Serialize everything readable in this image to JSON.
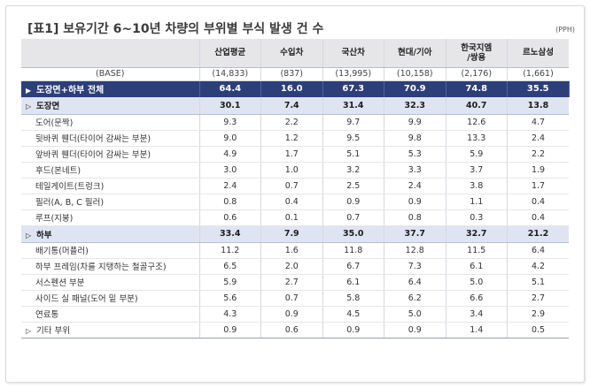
{
  "title": "[표1] 보유기간 6~10년 차량의 부위별 부식 발생 건 수",
  "unit": "(PPH)",
  "columns": [
    "산업평균",
    "수입차",
    "국산차",
    "현대/기아",
    "한국지엠\n/쌍용",
    "르노삼성"
  ],
  "base": {
    "label": "(BASE)",
    "values": [
      "(14,833)",
      "(837)",
      "(13,995)",
      "(10,158)",
      "(2,176)",
      "(1,661)"
    ]
  },
  "total": {
    "label": "도장면+하부 전체",
    "values": [
      "64.4",
      "16.0",
      "67.3",
      "70.9",
      "74.8",
      "35.5"
    ]
  },
  "group_paint": {
    "label": "도장면",
    "values": [
      "30.1",
      "7.4",
      "31.4",
      "32.3",
      "40.7",
      "13.8"
    ]
  },
  "paint_items": [
    {
      "label": "도어(문짝)",
      "values": [
        "9.3",
        "2.2",
        "9.7",
        "9.9",
        "12.6",
        "4.7"
      ]
    },
    {
      "label": "뒷바퀴 휀더(타이어 감싸는 부분)",
      "values": [
        "9.0",
        "1.2",
        "9.5",
        "9.8",
        "13.3",
        "2.4"
      ]
    },
    {
      "label": "앞바퀴 휀더(타이어 감싸는 부분)",
      "values": [
        "4.9",
        "1.7",
        "5.1",
        "5.3",
        "5.9",
        "2.2"
      ]
    },
    {
      "label": "후드(본네트)",
      "values": [
        "3.0",
        "1.0",
        "3.2",
        "3.3",
        "3.7",
        "1.9"
      ]
    },
    {
      "label": "테일게이트(트렁크)",
      "values": [
        "2.4",
        "0.7",
        "2.5",
        "2.4",
        "3.8",
        "1.7"
      ]
    },
    {
      "label": "필러(A, B, C 필러)",
      "values": [
        "0.8",
        "0.4",
        "0.9",
        "0.9",
        "1.1",
        "0.4"
      ]
    },
    {
      "label": "루프(지붕)",
      "values": [
        "0.6",
        "0.1",
        "0.7",
        "0.8",
        "0.3",
        "0.4"
      ]
    }
  ],
  "group_under": {
    "label": "하부",
    "values": [
      "33.4",
      "7.9",
      "35.0",
      "37.7",
      "32.7",
      "21.2"
    ]
  },
  "under_items": [
    {
      "label": "배기통(머플러)",
      "values": [
        "11.2",
        "1.6",
        "11.8",
        "12.8",
        "11.5",
        "6.4"
      ]
    },
    {
      "label": "하부 프레임(차를 지탱하는 철골구조)",
      "values": [
        "6.5",
        "2.0",
        "6.7",
        "7.3",
        "6.1",
        "4.2"
      ]
    },
    {
      "label": "서스펜션 부분",
      "values": [
        "5.9",
        "2.7",
        "6.1",
        "6.4",
        "5.0",
        "5.1"
      ]
    },
    {
      "label": "사이드 실 패널(도어 밑 부분)",
      "values": [
        "5.6",
        "0.7",
        "5.8",
        "6.2",
        "6.6",
        "2.7"
      ]
    },
    {
      "label": "연료통",
      "values": [
        "4.3",
        "0.9",
        "4.5",
        "5.0",
        "3.4",
        "2.9"
      ]
    }
  ],
  "other": {
    "label": "기타 부위",
    "values": [
      "0.9",
      "0.6",
      "0.9",
      "0.9",
      "1.4",
      "0.5"
    ]
  },
  "icons": {
    "total": "filled-right-triangle-icon",
    "group": "filled-right-triangle-icon",
    "other": "outline-right-triangle-icon"
  },
  "colors": {
    "total_bg": "#2d3f78",
    "group_bg": "#dfe4f2",
    "header_bg": "#e6e6e8"
  }
}
